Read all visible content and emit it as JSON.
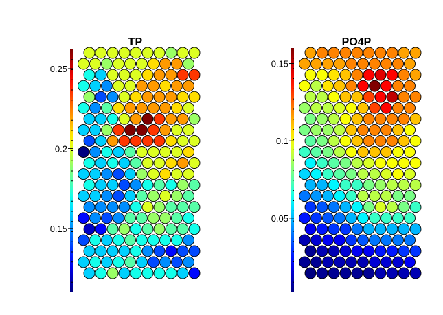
{
  "chart_data": [
    {
      "type": "heatmap",
      "subtype": "som-hexagonal-component-plane",
      "title": "TP",
      "grid": {
        "cols": 10,
        "rows": 21
      },
      "colormap": "jet",
      "colorbar": {
        "ticks": [
          0.15,
          0.2,
          0.25
        ],
        "range": [
          0.11,
          0.262
        ]
      },
      "values": [
        [
          0.2,
          0.2,
          0.2,
          0.2,
          0.2,
          0.2,
          0.2,
          0.19,
          0.2,
          0.2
        ],
        [
          0.2,
          0.2,
          0.19,
          0.2,
          0.2,
          0.2,
          0.21,
          0.22,
          0.22,
          0.19
        ],
        [
          0.17,
          0.16,
          0.2,
          0.2,
          0.2,
          0.21,
          0.22,
          0.22,
          0.235,
          0.235
        ],
        [
          0.17,
          0.16,
          0.15,
          0.2,
          0.2,
          0.22,
          0.22,
          0.21,
          0.22,
          0.22
        ],
        [
          0.19,
          0.14,
          0.15,
          0.2,
          0.21,
          0.22,
          0.22,
          0.22,
          0.21,
          0.21
        ],
        [
          0.17,
          0.15,
          0.18,
          0.21,
          0.22,
          0.22,
          0.22,
          0.22,
          0.21,
          0.2
        ],
        [
          0.16,
          0.16,
          0.17,
          0.2,
          0.22,
          0.262,
          0.235,
          0.22,
          0.22,
          0.19
        ],
        [
          0.16,
          0.16,
          0.19,
          0.235,
          0.262,
          0.262,
          0.235,
          0.22,
          0.2,
          0.2
        ],
        [
          0.14,
          0.16,
          0.22,
          0.235,
          0.235,
          0.235,
          0.235,
          0.21,
          0.2,
          0.2
        ],
        [
          0.11,
          0.15,
          0.17,
          0.16,
          0.18,
          0.2,
          0.2,
          0.2,
          0.2,
          0.21
        ],
        [
          0.17,
          0.16,
          0.17,
          0.16,
          0.18,
          0.2,
          0.2,
          0.21,
          0.22,
          0.2
        ],
        [
          0.16,
          0.16,
          0.15,
          0.14,
          0.16,
          0.19,
          0.2,
          0.21,
          0.2,
          0.2
        ],
        [
          0.17,
          0.16,
          0.16,
          0.14,
          0.15,
          0.17,
          0.18,
          0.17,
          0.19,
          0.18
        ],
        [
          0.16,
          0.16,
          0.15,
          0.14,
          0.16,
          0.18,
          0.19,
          0.2,
          0.19,
          0.18
        ],
        [
          0.15,
          0.15,
          0.15,
          0.15,
          0.17,
          0.2,
          0.19,
          0.18,
          0.18,
          0.18
        ],
        [
          0.13,
          0.15,
          0.14,
          0.15,
          0.18,
          0.18,
          0.19,
          0.19,
          0.18,
          0.17
        ],
        [
          0.12,
          0.13,
          0.18,
          0.19,
          0.17,
          0.18,
          0.19,
          0.18,
          0.18,
          0.17
        ],
        [
          0.14,
          0.17,
          0.16,
          0.17,
          0.18,
          0.17,
          0.17,
          0.17,
          0.17,
          0.15
        ],
        [
          0.16,
          0.16,
          0.16,
          0.16,
          0.17,
          0.15,
          0.14,
          0.13,
          0.14,
          0.14
        ],
        [
          0.16,
          0.17,
          0.16,
          0.17,
          0.18,
          0.16,
          0.14,
          0.15,
          0.14,
          0.15
        ],
        [
          0.16,
          0.17,
          0.19,
          0.16,
          0.17,
          0.17,
          0.17,
          0.17,
          0.16,
          0.13
        ]
      ]
    },
    {
      "type": "heatmap",
      "subtype": "som-hexagonal-component-plane",
      "title": "PO4P",
      "grid": {
        "cols": 10,
        "rows": 21
      },
      "colormap": "jet",
      "colorbar": {
        "ticks": [
          0.05,
          0.1,
          0.15
        ],
        "range": [
          0.002,
          0.16
        ]
      },
      "values": [
        [
          0.115,
          0.12,
          0.12,
          0.12,
          0.12,
          0.12,
          0.12,
          0.12,
          0.115,
          0.115
        ],
        [
          0.115,
          0.115,
          0.115,
          0.115,
          0.12,
          0.12,
          0.12,
          0.12,
          0.12,
          0.115
        ],
        [
          0.1,
          0.1,
          0.105,
          0.11,
          0.12,
          0.14,
          0.145,
          0.14,
          0.12,
          0.115
        ],
        [
          0.1,
          0.09,
          0.105,
          0.11,
          0.12,
          0.14,
          0.16,
          0.14,
          0.12,
          0.12
        ],
        [
          0.09,
          0.09,
          0.1,
          0.11,
          0.11,
          0.13,
          0.14,
          0.15,
          0.12,
          0.12
        ],
        [
          0.085,
          0.09,
          0.09,
          0.095,
          0.1,
          0.11,
          0.13,
          0.14,
          0.12,
          0.12
        ],
        [
          0.08,
          0.085,
          0.09,
          0.1,
          0.11,
          0.12,
          0.12,
          0.12,
          0.12,
          0.11
        ],
        [
          0.08,
          0.085,
          0.085,
          0.09,
          0.11,
          0.12,
          0.12,
          0.12,
          0.11,
          0.1
        ],
        [
          0.075,
          0.08,
          0.09,
          0.1,
          0.11,
          0.12,
          0.12,
          0.12,
          0.11,
          0.1
        ],
        [
          0.07,
          0.075,
          0.08,
          0.09,
          0.1,
          0.11,
          0.11,
          0.11,
          0.1,
          0.1
        ],
        [
          0.06,
          0.07,
          0.075,
          0.08,
          0.09,
          0.095,
          0.1,
          0.1,
          0.1,
          0.1
        ],
        [
          0.055,
          0.06,
          0.07,
          0.075,
          0.08,
          0.09,
          0.09,
          0.095,
          0.1,
          0.095
        ],
        [
          0.05,
          0.05,
          0.06,
          0.07,
          0.07,
          0.08,
          0.085,
          0.09,
          0.09,
          0.09
        ],
        [
          0.04,
          0.045,
          0.05,
          0.06,
          0.07,
          0.09,
          0.09,
          0.09,
          0.08,
          0.08
        ],
        [
          0.03,
          0.035,
          0.04,
          0.05,
          0.06,
          0.08,
          0.095,
          0.09,
          0.08,
          0.07
        ],
        [
          0.025,
          0.03,
          0.035,
          0.04,
          0.05,
          0.06,
          0.07,
          0.07,
          0.07,
          0.07
        ],
        [
          0.02,
          0.025,
          0.03,
          0.03,
          0.04,
          0.05,
          0.05,
          0.05,
          0.05,
          0.05
        ],
        [
          0.01,
          0.015,
          0.02,
          0.02,
          0.03,
          0.035,
          0.04,
          0.04,
          0.04,
          0.04
        ],
        [
          0.005,
          0.01,
          0.01,
          0.015,
          0.02,
          0.02,
          0.025,
          0.025,
          0.03,
          0.03
        ],
        [
          0.005,
          0.005,
          0.01,
          0.01,
          0.01,
          0.01,
          0.015,
          0.015,
          0.015,
          0.02
        ],
        [
          0.002,
          0.005,
          0.005,
          0.005,
          0.005,
          0.005,
          0.01,
          0.01,
          0.01,
          0.01
        ]
      ]
    }
  ]
}
